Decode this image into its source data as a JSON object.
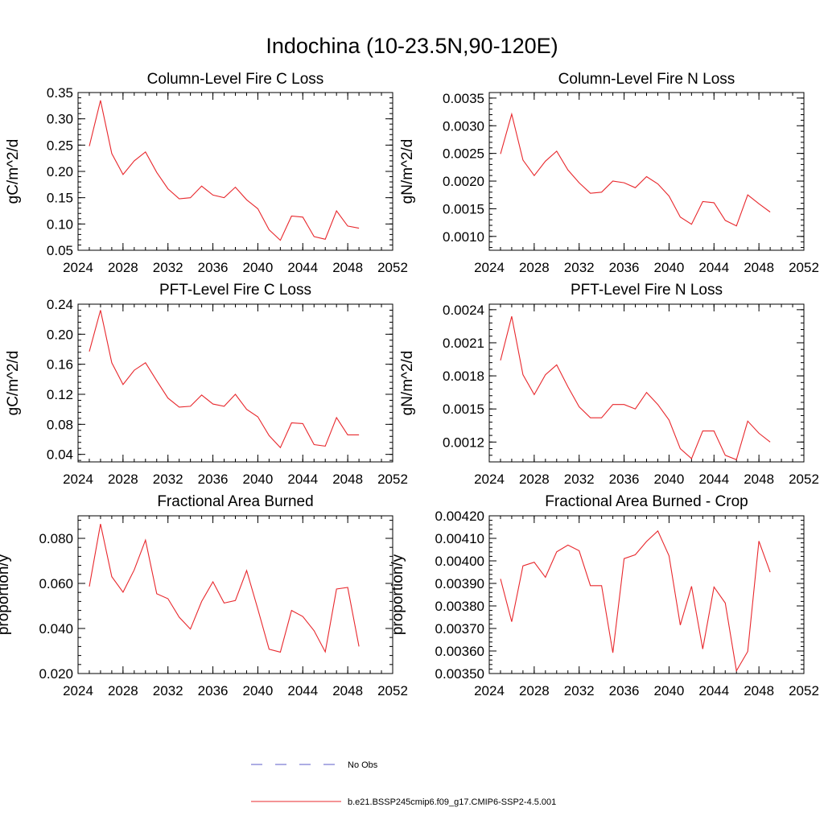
{
  "figure_title": "Indochina (10-23.5N,90-120E)",
  "legend": [
    {
      "label": "No Obs",
      "color": "#5b5bc8",
      "dash": true
    },
    {
      "label": "b.e21.BSSP245cmip6.f09_g17.CMIP6-SSP2-4.5.001",
      "color": "#e8282d",
      "dash": false
    }
  ],
  "chart_data": [
    {
      "type": "line",
      "title": "Column-Level Fire C Loss",
      "ylabel": "gC/m^2/d",
      "xlim": [
        2024,
        2052
      ],
      "xticks": [
        2024,
        2028,
        2032,
        2036,
        2040,
        2044,
        2048,
        2052
      ],
      "xtick_labels": [
        "2024",
        "2028",
        "2032",
        "2036",
        "2040",
        "2044",
        "2048",
        "2052"
      ],
      "ylim": [
        0.05,
        0.35
      ],
      "yticks": [
        0.05,
        0.1,
        0.15,
        0.2,
        0.25,
        0.3,
        0.35
      ],
      "ytick_labels": [
        "0.05",
        "0.10",
        "0.15",
        "0.20",
        "0.25",
        "0.30",
        "0.35"
      ],
      "x": [
        2025,
        2026,
        2027,
        2028,
        2029,
        2030,
        2031,
        2032,
        2033,
        2034,
        2035,
        2036,
        2037,
        2038,
        2039,
        2040,
        2041,
        2042,
        2043,
        2044,
        2045,
        2046,
        2047,
        2048,
        2049
      ],
      "series": [
        {
          "color": "#e8282d",
          "values": [
            0.248,
            0.335,
            0.234,
            0.194,
            0.22,
            0.237,
            0.198,
            0.167,
            0.148,
            0.15,
            0.172,
            0.155,
            0.15,
            0.17,
            0.146,
            0.129,
            0.089,
            0.069,
            0.115,
            0.113,
            0.076,
            0.071,
            0.125,
            0.096,
            0.092
          ]
        }
      ]
    },
    {
      "type": "line",
      "title": "Column-Level Fire N Loss",
      "ylabel": "gN/m^2/d",
      "xlim": [
        2024,
        2052
      ],
      "xticks": [
        2024,
        2028,
        2032,
        2036,
        2040,
        2044,
        2048,
        2052
      ],
      "xtick_labels": [
        "2024",
        "2028",
        "2032",
        "2036",
        "2040",
        "2044",
        "2048",
        "2052"
      ],
      "ylim": [
        0.00075,
        0.0036
      ],
      "yticks": [
        0.001,
        0.0015,
        0.002,
        0.0025,
        0.003,
        0.0035
      ],
      "ytick_labels": [
        "0.0010",
        "0.0015",
        "0.0020",
        "0.0025",
        "0.0030",
        "0.0035"
      ],
      "x": [
        2025,
        2026,
        2027,
        2028,
        2029,
        2030,
        2031,
        2032,
        2033,
        2034,
        2035,
        2036,
        2037,
        2038,
        2039,
        2040,
        2041,
        2042,
        2043,
        2044,
        2045,
        2046,
        2047,
        2048,
        2049
      ],
      "series": [
        {
          "color": "#e8282d",
          "values": [
            0.00249,
            0.00321,
            0.00238,
            0.0021,
            0.00236,
            0.00254,
            0.0022,
            0.00197,
            0.00178,
            0.0018,
            0.002,
            0.00197,
            0.00188,
            0.00208,
            0.00195,
            0.00173,
            0.00135,
            0.00122,
            0.00163,
            0.00161,
            0.00129,
            0.00119,
            0.00175,
            0.00159,
            0.00144
          ]
        }
      ]
    },
    {
      "type": "line",
      "title": "PFT-Level Fire C Loss",
      "ylabel": "gC/m^2/d",
      "xlim": [
        2024,
        2052
      ],
      "xticks": [
        2024,
        2028,
        2032,
        2036,
        2040,
        2044,
        2048,
        2052
      ],
      "xtick_labels": [
        "2024",
        "2028",
        "2032",
        "2036",
        "2040",
        "2044",
        "2048",
        "2052"
      ],
      "ylim": [
        0.03,
        0.24
      ],
      "yticks": [
        0.04,
        0.08,
        0.12,
        0.16,
        0.2,
        0.24
      ],
      "ytick_labels": [
        "0.04",
        "0.08",
        "0.12",
        "0.16",
        "0.20",
        "0.24"
      ],
      "x": [
        2025,
        2026,
        2027,
        2028,
        2029,
        2030,
        2031,
        2032,
        2033,
        2034,
        2035,
        2036,
        2037,
        2038,
        2039,
        2040,
        2041,
        2042,
        2043,
        2044,
        2045,
        2046,
        2047,
        2048,
        2049
      ],
      "series": [
        {
          "color": "#e8282d",
          "values": [
            0.177,
            0.232,
            0.162,
            0.133,
            0.152,
            0.162,
            0.138,
            0.115,
            0.103,
            0.104,
            0.119,
            0.107,
            0.104,
            0.12,
            0.1,
            0.09,
            0.065,
            0.049,
            0.082,
            0.081,
            0.053,
            0.051,
            0.089,
            0.066,
            0.066
          ]
        }
      ]
    },
    {
      "type": "line",
      "title": "PFT-Level Fire N Loss",
      "ylabel": "gN/m^2/d",
      "xlim": [
        2024,
        2052
      ],
      "xticks": [
        2024,
        2028,
        2032,
        2036,
        2040,
        2044,
        2048,
        2052
      ],
      "xtick_labels": [
        "2024",
        "2028",
        "2032",
        "2036",
        "2040",
        "2044",
        "2048",
        "2052"
      ],
      "ylim": [
        0.00102,
        0.00245
      ],
      "yticks": [
        0.0012,
        0.0015,
        0.0018,
        0.0021,
        0.0024
      ],
      "ytick_labels": [
        "0.0012",
        "0.0015",
        "0.0018",
        "0.0021",
        "0.0024"
      ],
      "x": [
        2025,
        2026,
        2027,
        2028,
        2029,
        2030,
        2031,
        2032,
        2033,
        2034,
        2035,
        2036,
        2037,
        2038,
        2039,
        2040,
        2041,
        2042,
        2043,
        2044,
        2045,
        2046,
        2047,
        2048,
        2049
      ],
      "series": [
        {
          "color": "#e8282d",
          "values": [
            0.00194,
            0.00234,
            0.00181,
            0.00163,
            0.00181,
            0.0019,
            0.0017,
            0.00152,
            0.00142,
            0.00142,
            0.00154,
            0.00154,
            0.0015,
            0.00165,
            0.00154,
            0.0014,
            0.00114,
            0.00105,
            0.0013,
            0.0013,
            0.00108,
            0.00104,
            0.00139,
            0.00128,
            0.0012
          ]
        }
      ]
    },
    {
      "type": "line",
      "title": "Fractional Area Burned",
      "ylabel": "proportion/y",
      "xlim": [
        2024,
        2052
      ],
      "xticks": [
        2024,
        2028,
        2032,
        2036,
        2040,
        2044,
        2048,
        2052
      ],
      "xtick_labels": [
        "2024",
        "2028",
        "2032",
        "2036",
        "2040",
        "2044",
        "2048",
        "2052"
      ],
      "ylim": [
        0.02,
        0.09
      ],
      "yticks": [
        0.02,
        0.04,
        0.06,
        0.08
      ],
      "ytick_labels": [
        "0.020",
        "0.040",
        "0.060",
        "0.080"
      ],
      "x": [
        2025,
        2026,
        2027,
        2028,
        2029,
        2030,
        2031,
        2032,
        2033,
        2034,
        2035,
        2036,
        2037,
        2038,
        2039,
        2040,
        2041,
        2042,
        2043,
        2044,
        2045,
        2046,
        2047,
        2048,
        2049
      ],
      "series": [
        {
          "color": "#e8282d",
          "values": [
            0.0586,
            0.0864,
            0.063,
            0.0561,
            0.066,
            0.0792,
            0.0554,
            0.0532,
            0.045,
            0.0397,
            0.052,
            0.0607,
            0.0513,
            0.0524,
            0.0657,
            0.0486,
            0.0308,
            0.0295,
            0.048,
            0.0453,
            0.039,
            0.0296,
            0.0575,
            0.0582,
            0.032
          ]
        }
      ]
    },
    {
      "type": "line",
      "title": "Fractional Area Burned - Crop",
      "ylabel": "proportion/y",
      "xlim": [
        2024,
        2052
      ],
      "xticks": [
        2024,
        2028,
        2032,
        2036,
        2040,
        2044,
        2048,
        2052
      ],
      "xtick_labels": [
        "2024",
        "2028",
        "2032",
        "2036",
        "2040",
        "2044",
        "2048",
        "2052"
      ],
      "ylim": [
        0.0035,
        0.0042
      ],
      "yticks": [
        0.0035,
        0.0036,
        0.0037,
        0.0038,
        0.0039,
        0.004,
        0.0041,
        0.0042
      ],
      "ytick_labels": [
        "0.00350",
        "0.00360",
        "0.00370",
        "0.00380",
        "0.00390",
        "0.00400",
        "0.00410",
        "0.00420"
      ],
      "x": [
        2025,
        2026,
        2027,
        2028,
        2029,
        2030,
        2031,
        2032,
        2033,
        2034,
        2035,
        2036,
        2037,
        2038,
        2039,
        2040,
        2041,
        2042,
        2043,
        2044,
        2045,
        2046,
        2047,
        2048,
        2049
      ],
      "series": [
        {
          "color": "#e8282d",
          "values": [
            0.00392,
            0.00373,
            0.003978,
            0.003994,
            0.003927,
            0.00404,
            0.00407,
            0.004045,
            0.00389,
            0.00389,
            0.003592,
            0.00401,
            0.004027,
            0.004086,
            0.004133,
            0.004023,
            0.003715,
            0.003887,
            0.003609,
            0.003884,
            0.003813,
            0.003512,
            0.003598,
            0.004088,
            0.00395
          ]
        }
      ]
    }
  ]
}
